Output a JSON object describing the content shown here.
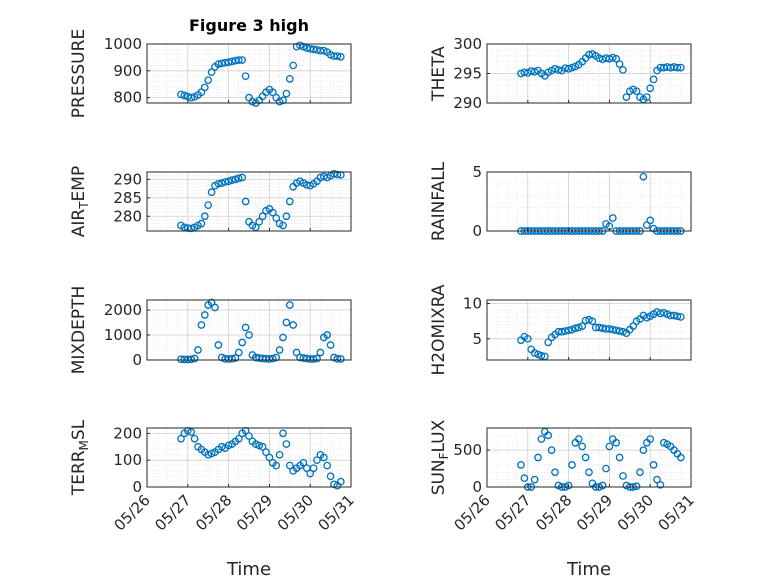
{
  "figure": {
    "title": "Figure 3 high",
    "x_date_ticks": [
      "05/26",
      "05/27",
      "05/28",
      "05/29",
      "05/30",
      "05/31"
    ]
  },
  "colors": {
    "marker": "#0072BD",
    "axis": "#262626",
    "grid": "#d9d9d9",
    "background": "#ffffff"
  },
  "chart_data": [
    {
      "type": "scatter",
      "ylabel": "PRESSURE",
      "ylim": [
        780,
        1000
      ],
      "yticks": [
        800,
        900,
        1000
      ],
      "xlim": [
        "05/26",
        "05/31"
      ],
      "title": "Figure 3 high",
      "xlabel": "",
      "x": [
        "2024-05-26T20:00",
        "2024-05-26T22:00",
        "2024-05-27T00:00",
        "2024-05-27T02:00",
        "2024-05-27T04:00",
        "2024-05-27T06:00",
        "2024-05-27T08:00",
        "2024-05-27T10:00",
        "2024-05-27T12:00",
        "2024-05-27T14:00",
        "2024-05-27T16:00",
        "2024-05-27T18:00",
        "2024-05-27T20:00",
        "2024-05-27T22:00",
        "2024-05-28T00:00",
        "2024-05-28T02:00",
        "2024-05-28T04:00",
        "2024-05-28T06:00",
        "2024-05-28T08:00",
        "2024-05-28T10:00",
        "2024-05-28T12:00",
        "2024-05-28T14:00",
        "2024-05-28T16:00",
        "2024-05-28T18:00",
        "2024-05-28T20:00",
        "2024-05-28T22:00",
        "2024-05-29T00:00",
        "2024-05-29T02:00",
        "2024-05-29T04:00",
        "2024-05-29T06:00",
        "2024-05-29T08:00",
        "2024-05-29T10:00",
        "2024-05-29T12:00",
        "2024-05-29T14:00",
        "2024-05-29T16:00",
        "2024-05-29T18:00",
        "2024-05-29T20:00",
        "2024-05-29T22:00",
        "2024-05-30T00:00",
        "2024-05-30T02:00",
        "2024-05-30T04:00",
        "2024-05-30T06:00",
        "2024-05-30T08:00",
        "2024-05-30T10:00",
        "2024-05-30T12:00",
        "2024-05-30T14:00",
        "2024-05-30T16:00",
        "2024-05-30T18:00"
      ],
      "y": [
        812,
        808,
        804,
        800,
        803,
        810,
        820,
        838,
        865,
        895,
        915,
        925,
        928,
        930,
        932,
        935,
        938,
        940,
        940,
        880,
        800,
        785,
        780,
        790,
        805,
        820,
        830,
        820,
        800,
        785,
        790,
        815,
        870,
        920,
        990,
        995,
        990,
        985,
        982,
        980,
        978,
        975,
        975,
        970,
        960,
        955,
        955,
        952
      ]
    },
    {
      "type": "scatter",
      "ylabel": "THETA",
      "ylim": [
        290,
        300
      ],
      "yticks": [
        290,
        295,
        300
      ],
      "xlim": [
        "05/26",
        "05/31"
      ],
      "title": "",
      "xlabel": "",
      "x": [
        "2024-05-26T20:00",
        "2024-05-26T22:00",
        "2024-05-27T00:00",
        "2024-05-27T02:00",
        "2024-05-27T04:00",
        "2024-05-27T06:00",
        "2024-05-27T08:00",
        "2024-05-27T10:00",
        "2024-05-27T12:00",
        "2024-05-27T14:00",
        "2024-05-27T16:00",
        "2024-05-27T18:00",
        "2024-05-27T20:00",
        "2024-05-27T22:00",
        "2024-05-28T00:00",
        "2024-05-28T02:00",
        "2024-05-28T04:00",
        "2024-05-28T06:00",
        "2024-05-28T08:00",
        "2024-05-28T10:00",
        "2024-05-28T12:00",
        "2024-05-28T14:00",
        "2024-05-28T16:00",
        "2024-05-28T18:00",
        "2024-05-28T20:00",
        "2024-05-28T22:00",
        "2024-05-29T00:00",
        "2024-05-29T02:00",
        "2024-05-29T04:00",
        "2024-05-29T06:00",
        "2024-05-29T08:00",
        "2024-05-29T10:00",
        "2024-05-29T12:00",
        "2024-05-29T14:00",
        "2024-05-29T16:00",
        "2024-05-29T18:00",
        "2024-05-29T20:00",
        "2024-05-29T22:00",
        "2024-05-30T00:00",
        "2024-05-30T02:00",
        "2024-05-30T04:00",
        "2024-05-30T06:00",
        "2024-05-30T08:00",
        "2024-05-30T10:00",
        "2024-05-30T12:00",
        "2024-05-30T14:00",
        "2024-05-30T16:00",
        "2024-05-30T18:00"
      ],
      "y": [
        295.0,
        295.2,
        295.1,
        295.4,
        295.3,
        295.5,
        295.0,
        294.6,
        295.2,
        295.5,
        295.8,
        295.6,
        295.5,
        295.9,
        295.8,
        296.0,
        296.2,
        296.5,
        297.0,
        297.6,
        298.2,
        298.3,
        298.0,
        297.6,
        297.4,
        297.6,
        297.5,
        297.7,
        297.5,
        296.6,
        295.6,
        291.0,
        292.0,
        292.3,
        292.0,
        291.0,
        290.6,
        291.0,
        292.5,
        294.0,
        295.5,
        296.0,
        296.0,
        296.1,
        296.0,
        296.1,
        296.0,
        296.0
      ]
    },
    {
      "type": "scatter",
      "ylabel": "AIR_TEMP",
      "ylim": [
        276,
        292
      ],
      "yticks": [
        280,
        285,
        290
      ],
      "xlim": [
        "05/26",
        "05/31"
      ],
      "title": "",
      "xlabel": "",
      "x": [
        "2024-05-26T20:00",
        "2024-05-26T22:00",
        "2024-05-27T00:00",
        "2024-05-27T02:00",
        "2024-05-27T04:00",
        "2024-05-27T06:00",
        "2024-05-27T08:00",
        "2024-05-27T10:00",
        "2024-05-27T12:00",
        "2024-05-27T14:00",
        "2024-05-27T16:00",
        "2024-05-27T18:00",
        "2024-05-27T20:00",
        "2024-05-27T22:00",
        "2024-05-28T00:00",
        "2024-05-28T02:00",
        "2024-05-28T04:00",
        "2024-05-28T06:00",
        "2024-05-28T08:00",
        "2024-05-28T10:00",
        "2024-05-28T12:00",
        "2024-05-28T14:00",
        "2024-05-28T16:00",
        "2024-05-28T18:00",
        "2024-05-28T20:00",
        "2024-05-28T22:00",
        "2024-05-29T00:00",
        "2024-05-29T02:00",
        "2024-05-29T04:00",
        "2024-05-29T06:00",
        "2024-05-29T08:00",
        "2024-05-29T10:00",
        "2024-05-29T12:00",
        "2024-05-29T14:00",
        "2024-05-29T16:00",
        "2024-05-29T18:00",
        "2024-05-29T20:00",
        "2024-05-29T22:00",
        "2024-05-30T00:00",
        "2024-05-30T02:00",
        "2024-05-30T04:00",
        "2024-05-30T06:00",
        "2024-05-30T08:00",
        "2024-05-30T10:00",
        "2024-05-30T12:00",
        "2024-05-30T14:00",
        "2024-05-30T16:00",
        "2024-05-30T18:00"
      ],
      "y": [
        277.5,
        277.0,
        276.8,
        276.7,
        277.0,
        277.5,
        278.0,
        280.0,
        283.0,
        286.5,
        288.3,
        288.8,
        289.0,
        289.3,
        289.5,
        289.8,
        290.0,
        290.3,
        290.5,
        284.0,
        278.5,
        277.5,
        277.0,
        278.5,
        280.0,
        281.5,
        282.0,
        281.0,
        279.5,
        278.0,
        277.5,
        280.0,
        284.0,
        288.0,
        289.0,
        289.5,
        289.0,
        288.5,
        288.3,
        288.8,
        289.5,
        290.5,
        290.8,
        290.5,
        291.0,
        291.5,
        291.3,
        291.2
      ]
    },
    {
      "type": "scatter",
      "ylabel": "RAINFALL",
      "ylim": [
        0,
        5
      ],
      "yticks": [
        0,
        5
      ],
      "xlim": [
        "05/26",
        "05/31"
      ],
      "title": "",
      "xlabel": "",
      "x": [
        "2024-05-26T20:00",
        "2024-05-26T22:00",
        "2024-05-27T00:00",
        "2024-05-27T02:00",
        "2024-05-27T04:00",
        "2024-05-27T06:00",
        "2024-05-27T08:00",
        "2024-05-27T10:00",
        "2024-05-27T12:00",
        "2024-05-27T14:00",
        "2024-05-27T16:00",
        "2024-05-27T18:00",
        "2024-05-27T20:00",
        "2024-05-27T22:00",
        "2024-05-28T00:00",
        "2024-05-28T02:00",
        "2024-05-28T04:00",
        "2024-05-28T06:00",
        "2024-05-28T08:00",
        "2024-05-28T10:00",
        "2024-05-28T12:00",
        "2024-05-28T14:00",
        "2024-05-28T16:00",
        "2024-05-28T18:00",
        "2024-05-28T20:00",
        "2024-05-28T22:00",
        "2024-05-29T00:00",
        "2024-05-29T02:00",
        "2024-05-29T04:00",
        "2024-05-29T06:00",
        "2024-05-29T08:00",
        "2024-05-29T10:00",
        "2024-05-29T12:00",
        "2024-05-29T14:00",
        "2024-05-29T16:00",
        "2024-05-29T18:00",
        "2024-05-29T20:00",
        "2024-05-29T22:00",
        "2024-05-30T00:00",
        "2024-05-30T02:00",
        "2024-05-30T04:00",
        "2024-05-30T06:00",
        "2024-05-30T08:00",
        "2024-05-30T10:00",
        "2024-05-30T12:00",
        "2024-05-30T14:00",
        "2024-05-30T16:00",
        "2024-05-30T18:00"
      ],
      "y": [
        0,
        0,
        0,
        0,
        0,
        0,
        0,
        0,
        0,
        0,
        0,
        0,
        0,
        0,
        0,
        0,
        0,
        0,
        0,
        0,
        0,
        0,
        0,
        0,
        0,
        0.6,
        0.4,
        1.1,
        0,
        0,
        0,
        0,
        0,
        0,
        0,
        0,
        4.6,
        0.5,
        0.9,
        0.2,
        0,
        0,
        0,
        0,
        0,
        0,
        0,
        0
      ]
    },
    {
      "type": "scatter",
      "ylabel": "MIXDEPTH",
      "ylim": [
        0,
        2400
      ],
      "yticks": [
        0,
        1000,
        2000
      ],
      "xlim": [
        "05/26",
        "05/31"
      ],
      "title": "",
      "xlabel": "",
      "x": [
        "2024-05-26T20:00",
        "2024-05-26T22:00",
        "2024-05-27T00:00",
        "2024-05-27T02:00",
        "2024-05-27T04:00",
        "2024-05-27T06:00",
        "2024-05-27T08:00",
        "2024-05-27T10:00",
        "2024-05-27T12:00",
        "2024-05-27T14:00",
        "2024-05-27T16:00",
        "2024-05-27T18:00",
        "2024-05-27T20:00",
        "2024-05-27T22:00",
        "2024-05-28T00:00",
        "2024-05-28T02:00",
        "2024-05-28T04:00",
        "2024-05-28T06:00",
        "2024-05-28T08:00",
        "2024-05-28T10:00",
        "2024-05-28T12:00",
        "2024-05-28T14:00",
        "2024-05-28T16:00",
        "2024-05-28T18:00",
        "2024-05-28T20:00",
        "2024-05-28T22:00",
        "2024-05-29T00:00",
        "2024-05-29T02:00",
        "2024-05-29T04:00",
        "2024-05-29T06:00",
        "2024-05-29T08:00",
        "2024-05-29T10:00",
        "2024-05-29T12:00",
        "2024-05-29T14:00",
        "2024-05-29T16:00",
        "2024-05-29T18:00",
        "2024-05-29T20:00",
        "2024-05-29T22:00",
        "2024-05-30T00:00",
        "2024-05-30T02:00",
        "2024-05-30T04:00",
        "2024-05-30T06:00",
        "2024-05-30T08:00",
        "2024-05-30T10:00",
        "2024-05-30T12:00",
        "2024-05-30T14:00",
        "2024-05-30T16:00",
        "2024-05-30T18:00"
      ],
      "y": [
        30,
        20,
        20,
        30,
        60,
        400,
        1400,
        1800,
        2200,
        2300,
        2100,
        600,
        100,
        50,
        40,
        50,
        80,
        300,
        700,
        1300,
        1000,
        200,
        100,
        80,
        60,
        50,
        40,
        60,
        100,
        400,
        900,
        1500,
        2200,
        1400,
        300,
        100,
        80,
        60,
        40,
        40,
        60,
        300,
        900,
        1000,
        600,
        100,
        50,
        40
      ]
    },
    {
      "type": "scatter",
      "ylabel": "H2OMIXRA",
      "ylim": [
        2,
        10.5
      ],
      "yticks": [
        5,
        10
      ],
      "xlim": [
        "05/26",
        "05/31"
      ],
      "title": "",
      "xlabel": "",
      "x": [
        "2024-05-26T20:00",
        "2024-05-26T22:00",
        "2024-05-27T00:00",
        "2024-05-27T02:00",
        "2024-05-27T04:00",
        "2024-05-27T06:00",
        "2024-05-27T08:00",
        "2024-05-27T10:00",
        "2024-05-27T12:00",
        "2024-05-27T14:00",
        "2024-05-27T16:00",
        "2024-05-27T18:00",
        "2024-05-27T20:00",
        "2024-05-27T22:00",
        "2024-05-28T00:00",
        "2024-05-28T02:00",
        "2024-05-28T04:00",
        "2024-05-28T06:00",
        "2024-05-28T08:00",
        "2024-05-28T10:00",
        "2024-05-28T12:00",
        "2024-05-28T14:00",
        "2024-05-28T16:00",
        "2024-05-28T18:00",
        "2024-05-28T20:00",
        "2024-05-28T22:00",
        "2024-05-29T00:00",
        "2024-05-29T02:00",
        "2024-05-29T04:00",
        "2024-05-29T06:00",
        "2024-05-29T08:00",
        "2024-05-29T10:00",
        "2024-05-29T12:00",
        "2024-05-29T14:00",
        "2024-05-29T16:00",
        "2024-05-29T18:00",
        "2024-05-29T20:00",
        "2024-05-29T22:00",
        "2024-05-30T00:00",
        "2024-05-30T02:00",
        "2024-05-30T04:00",
        "2024-05-30T06:00",
        "2024-05-30T08:00",
        "2024-05-30T10:00",
        "2024-05-30T12:00",
        "2024-05-30T14:00",
        "2024-05-30T16:00",
        "2024-05-30T18:00"
      ],
      "y": [
        4.8,
        5.3,
        5.0,
        3.5,
        3.0,
        2.8,
        2.6,
        2.5,
        4.5,
        5.2,
        5.6,
        6.0,
        6.0,
        6.1,
        6.2,
        6.3,
        6.5,
        6.6,
        6.8,
        7.6,
        7.7,
        7.5,
        6.6,
        6.6,
        6.5,
        6.4,
        6.4,
        6.3,
        6.2,
        6.1,
        6.0,
        5.8,
        6.3,
        6.8,
        7.5,
        7.8,
        8.3,
        8.0,
        8.2,
        8.5,
        8.8,
        8.6,
        8.7,
        8.5,
        8.3,
        8.3,
        8.2,
        8.1
      ]
    },
    {
      "type": "scatter",
      "ylabel": "TERR_MSL",
      "ylim": [
        0,
        220
      ],
      "yticks": [
        0,
        100,
        200
      ],
      "xlim": [
        "05/26",
        "05/31"
      ],
      "title": "",
      "xlabel": "Time",
      "x": [
        "2024-05-26T20:00",
        "2024-05-26T22:00",
        "2024-05-27T00:00",
        "2024-05-27T02:00",
        "2024-05-27T04:00",
        "2024-05-27T06:00",
        "2024-05-27T08:00",
        "2024-05-27T10:00",
        "2024-05-27T12:00",
        "2024-05-27T14:00",
        "2024-05-27T16:00",
        "2024-05-27T18:00",
        "2024-05-27T20:00",
        "2024-05-27T22:00",
        "2024-05-28T00:00",
        "2024-05-28T02:00",
        "2024-05-28T04:00",
        "2024-05-28T06:00",
        "2024-05-28T08:00",
        "2024-05-28T10:00",
        "2024-05-28T12:00",
        "2024-05-28T14:00",
        "2024-05-28T16:00",
        "2024-05-28T18:00",
        "2024-05-28T20:00",
        "2024-05-28T22:00",
        "2024-05-29T00:00",
        "2024-05-29T02:00",
        "2024-05-29T04:00",
        "2024-05-29T06:00",
        "2024-05-29T08:00",
        "2024-05-29T10:00",
        "2024-05-29T12:00",
        "2024-05-29T14:00",
        "2024-05-29T16:00",
        "2024-05-29T18:00",
        "2024-05-29T20:00",
        "2024-05-29T22:00",
        "2024-05-30T00:00",
        "2024-05-30T02:00",
        "2024-05-30T04:00",
        "2024-05-30T06:00",
        "2024-05-30T08:00",
        "2024-05-30T10:00",
        "2024-05-30T12:00",
        "2024-05-30T14:00",
        "2024-05-30T16:00",
        "2024-05-30T18:00"
      ],
      "y": [
        180,
        200,
        210,
        205,
        180,
        150,
        140,
        130,
        120,
        125,
        130,
        140,
        150,
        145,
        155,
        160,
        170,
        180,
        200,
        210,
        190,
        170,
        160,
        155,
        150,
        130,
        110,
        90,
        80,
        120,
        200,
        160,
        80,
        60,
        70,
        80,
        90,
        70,
        50,
        70,
        100,
        120,
        110,
        80,
        40,
        10,
        5,
        20
      ]
    },
    {
      "type": "scatter",
      "ylabel": "SUN_FLUX",
      "ylim": [
        0,
        800
      ],
      "yticks": [
        0,
        500
      ],
      "xlim": [
        "05/26",
        "05/31"
      ],
      "title": "",
      "xlabel": "Time",
      "x": [
        "2024-05-26T20:00",
        "2024-05-26T22:00",
        "2024-05-27T00:00",
        "2024-05-27T02:00",
        "2024-05-27T04:00",
        "2024-05-27T06:00",
        "2024-05-27T08:00",
        "2024-05-27T10:00",
        "2024-05-27T12:00",
        "2024-05-27T14:00",
        "2024-05-27T16:00",
        "2024-05-27T18:00",
        "2024-05-27T20:00",
        "2024-05-27T22:00",
        "2024-05-28T00:00",
        "2024-05-28T02:00",
        "2024-05-28T04:00",
        "2024-05-28T06:00",
        "2024-05-28T08:00",
        "2024-05-28T10:00",
        "2024-05-28T12:00",
        "2024-05-28T14:00",
        "2024-05-28T16:00",
        "2024-05-28T18:00",
        "2024-05-28T20:00",
        "2024-05-28T22:00",
        "2024-05-29T00:00",
        "2024-05-29T02:00",
        "2024-05-29T04:00",
        "2024-05-29T06:00",
        "2024-05-29T08:00",
        "2024-05-29T10:00",
        "2024-05-29T12:00",
        "2024-05-29T14:00",
        "2024-05-29T16:00",
        "2024-05-29T18:00",
        "2024-05-29T20:00",
        "2024-05-29T22:00",
        "2024-05-30T00:00",
        "2024-05-30T02:00",
        "2024-05-30T04:00",
        "2024-05-30T06:00",
        "2024-05-30T08:00",
        "2024-05-30T10:00",
        "2024-05-30T12:00",
        "2024-05-30T14:00",
        "2024-05-30T16:00",
        "2024-05-30T18:00"
      ],
      "y": [
        300,
        120,
        0,
        0,
        100,
        400,
        650,
        750,
        700,
        500,
        200,
        20,
        0,
        0,
        20,
        300,
        600,
        650,
        550,
        400,
        200,
        50,
        0,
        0,
        20,
        250,
        550,
        650,
        600,
        400,
        150,
        20,
        0,
        0,
        10,
        200,
        500,
        600,
        650,
        300,
        100,
        30,
        600,
        580,
        550,
        500,
        450,
        400
      ]
    }
  ]
}
